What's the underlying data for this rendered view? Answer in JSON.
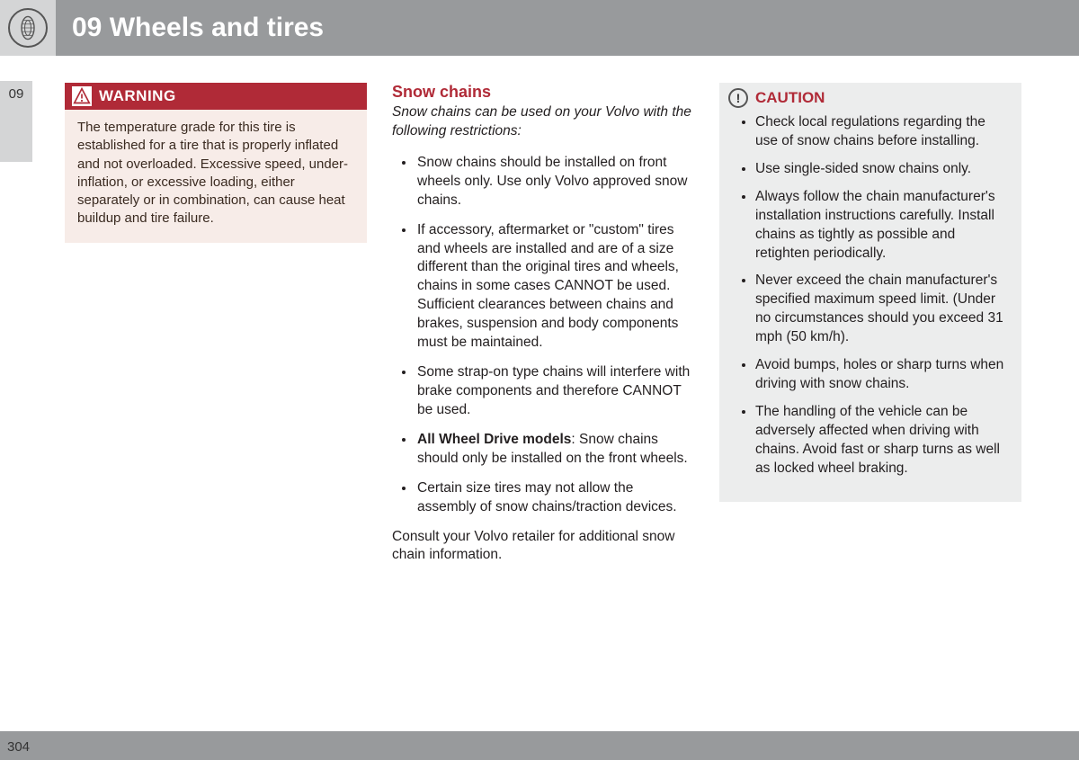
{
  "header": {
    "chapter_number": "09",
    "title": "09 Wheels and tires",
    "title_color": "#ffffff",
    "bar_color": "#989a9c",
    "icon_bg": "#d4d5d6",
    "icon_name": "tire-icon"
  },
  "side_tab": {
    "label": "09",
    "bg": "#d4d5d6"
  },
  "footer": {
    "page_number": "304",
    "bar_color": "#989a9c"
  },
  "colors": {
    "accent_red": "#b02a37",
    "warn_body_bg": "#f7ece8",
    "caution_bg": "#eceded",
    "text": "#231f20"
  },
  "warning": {
    "label": "WARNING",
    "body": "The temperature grade for this tire is established for a tire that is properly inflated and not overloaded. Excessive speed, under-inflation, or excessive loading, either separately or in combination, can cause heat buildup and tire failure."
  },
  "snow_chains": {
    "title": "Snow chains",
    "intro": "Snow chains can be used on your Volvo with the following restrictions:",
    "items": [
      {
        "text": "Snow chains should be installed on front wheels only. Use only Volvo approved snow chains."
      },
      {
        "text": "If accessory, aftermarket or \"custom\" tires and wheels are installed and are of a size different than the original tires and wheels, chains in some cases CANNOT be used. Sufficient clearances between chains and brakes, suspension and body components must be maintained."
      },
      {
        "text": "Some strap-on type chains will interfere with brake components and therefore CANNOT be used."
      },
      {
        "bold_prefix": "All Wheel Drive models",
        "text": ": Snow chains should only be installed on the front wheels."
      },
      {
        "text": "Certain size tires may not allow the assembly of snow chains/traction devices."
      }
    ],
    "after": "Consult your Volvo retailer for additional snow chain information."
  },
  "caution": {
    "label": "CAUTION",
    "items": [
      "Check local regulations regarding the use of snow chains before installing.",
      "Use single-sided snow chains only.",
      "Always follow the chain manufacturer's installation instructions carefully. Install chains as tightly as possible and retighten periodically.",
      "Never exceed the chain manufacturer's specified maximum speed limit. (Under no circumstances should you exceed 31 mph (50 km/h).",
      "Avoid bumps, holes or sharp turns when driving with snow chains.",
      "The handling of the vehicle can be adversely affected when driving with chains. Avoid fast or sharp turns as well as locked wheel braking."
    ]
  }
}
